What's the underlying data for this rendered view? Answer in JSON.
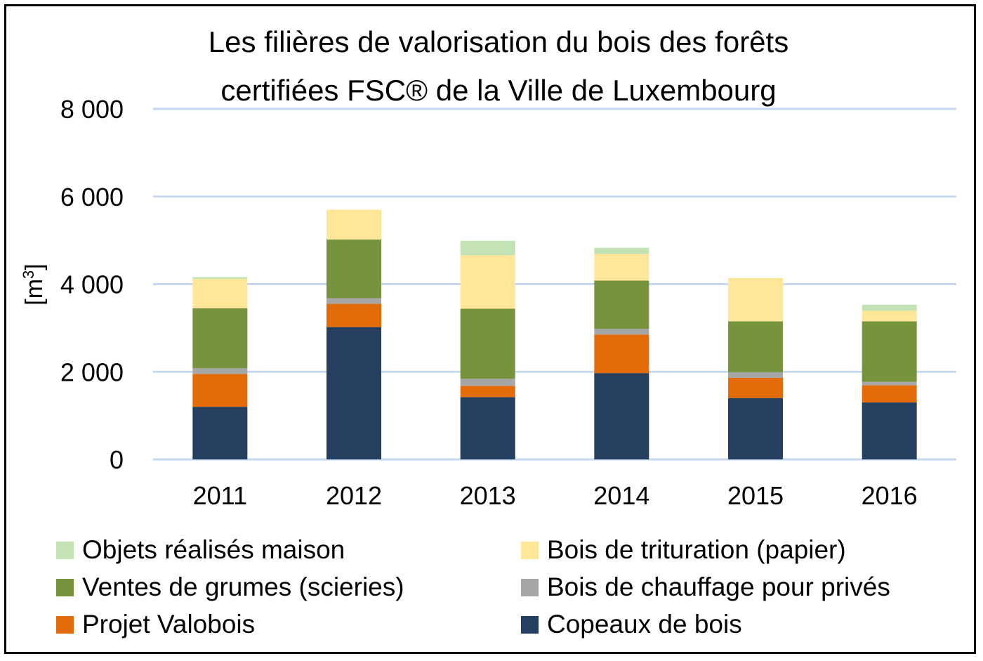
{
  "chart_data": {
    "type": "bar",
    "stacked": true,
    "title": [
      "Les filières de valorisation du bois des forêts",
      "certifiées FSC® de la Ville de Luxembourg"
    ],
    "ylabel": "[m3]",
    "ylabel_base": "[m",
    "ylabel_sup": "3",
    "ylabel_end": "]",
    "ylim": [
      0,
      8000
    ],
    "yticks": [
      0,
      2000,
      4000,
      6000,
      8000
    ],
    "ytick_labels": [
      "0",
      "2 000",
      "4 000",
      "6 000",
      "8 000"
    ],
    "categories": [
      "2011",
      "2012",
      "2013",
      "2014",
      "2015",
      "2016"
    ],
    "series": [
      {
        "name": "Copeaux de bois",
        "color": "#243f60",
        "values": [
          1200,
          3020,
          1420,
          1970,
          1400,
          1300
        ]
      },
      {
        "name": "Projet Valobois",
        "color": "#e36c09",
        "values": [
          750,
          530,
          260,
          880,
          460,
          390
        ]
      },
      {
        "name": "Bois de chauffage pour privés",
        "color": "#a6a6a6",
        "values": [
          130,
          130,
          160,
          130,
          130,
          80
        ]
      },
      {
        "name": "Ventes de grumes (scieries)",
        "color": "#77933c",
        "values": [
          1370,
          1340,
          1600,
          1100,
          1160,
          1380
        ]
      },
      {
        "name": "Bois de trituration (papier)",
        "color": "#ffe699",
        "values": [
          670,
          680,
          1220,
          610,
          990,
          240
        ]
      },
      {
        "name": "Objets réalisés maison",
        "color": "#c3e3b5",
        "values": [
          40,
          0,
          330,
          140,
          0,
          140
        ]
      }
    ],
    "legend": [
      {
        "name": "Objets réalisés maison",
        "color": "#c3e3b5"
      },
      {
        "name": "Bois de trituration (papier)",
        "color": "#ffe699"
      },
      {
        "name": "Ventes de grumes (scieries)",
        "color": "#77933c"
      },
      {
        "name": "Bois de chauffage pour privés",
        "color": "#a6a6a6"
      },
      {
        "name": "Projet Valobois",
        "color": "#e36c09"
      },
      {
        "name": "Copeaux de bois",
        "color": "#243f60"
      }
    ],
    "grid_color": "#c6d9f1",
    "legend_position": "bottom"
  }
}
